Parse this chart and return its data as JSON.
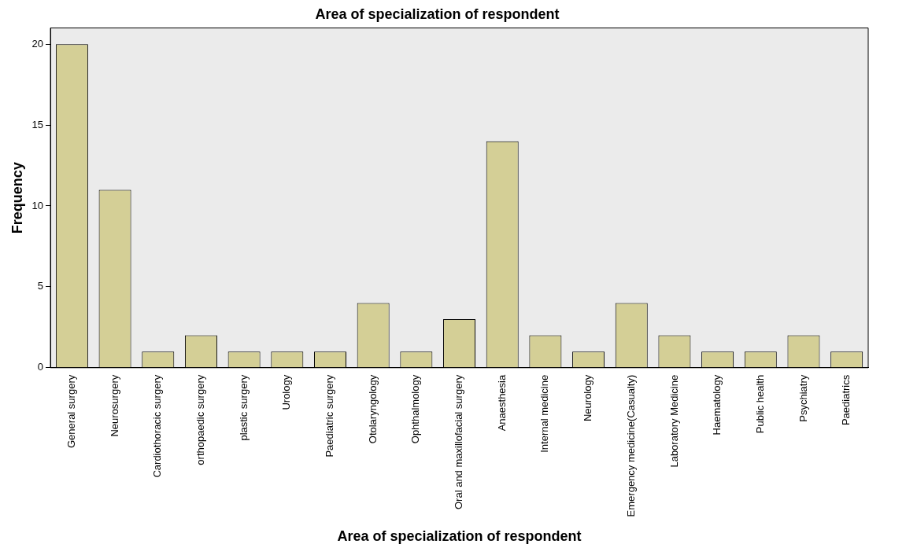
{
  "chart_data": {
    "type": "bar",
    "title": "Area of specialization of respondent",
    "xlabel": "Area of specialization of respondent",
    "ylabel": "Frequency",
    "categories": [
      "General surgery",
      "Neurosurgery",
      "Cardiothoracic surgery",
      "orthopaedic surgery",
      "plastic surgery",
      "Urology",
      "Paediatric surgery",
      "Otolaryngology",
      "Ophthalmology",
      "Oral and maxillofacial surgery",
      "Anaesthesia",
      "Internal medicine",
      "Neurology",
      "Emergency medicine(Casualty)",
      "Laboratory Medicine",
      "Haematology",
      "Public health",
      "Psychiatry",
      "Paediatrics"
    ],
    "values": [
      20,
      11,
      1,
      2,
      1,
      1,
      1,
      4,
      1,
      3,
      14,
      2,
      1,
      4,
      2,
      1,
      1,
      2,
      1
    ],
    "color": "#d4cf96",
    "ylim": [
      0,
      21
    ],
    "yticks": [
      0,
      5,
      10,
      15,
      20
    ],
    "grid": false,
    "legend": false
  }
}
